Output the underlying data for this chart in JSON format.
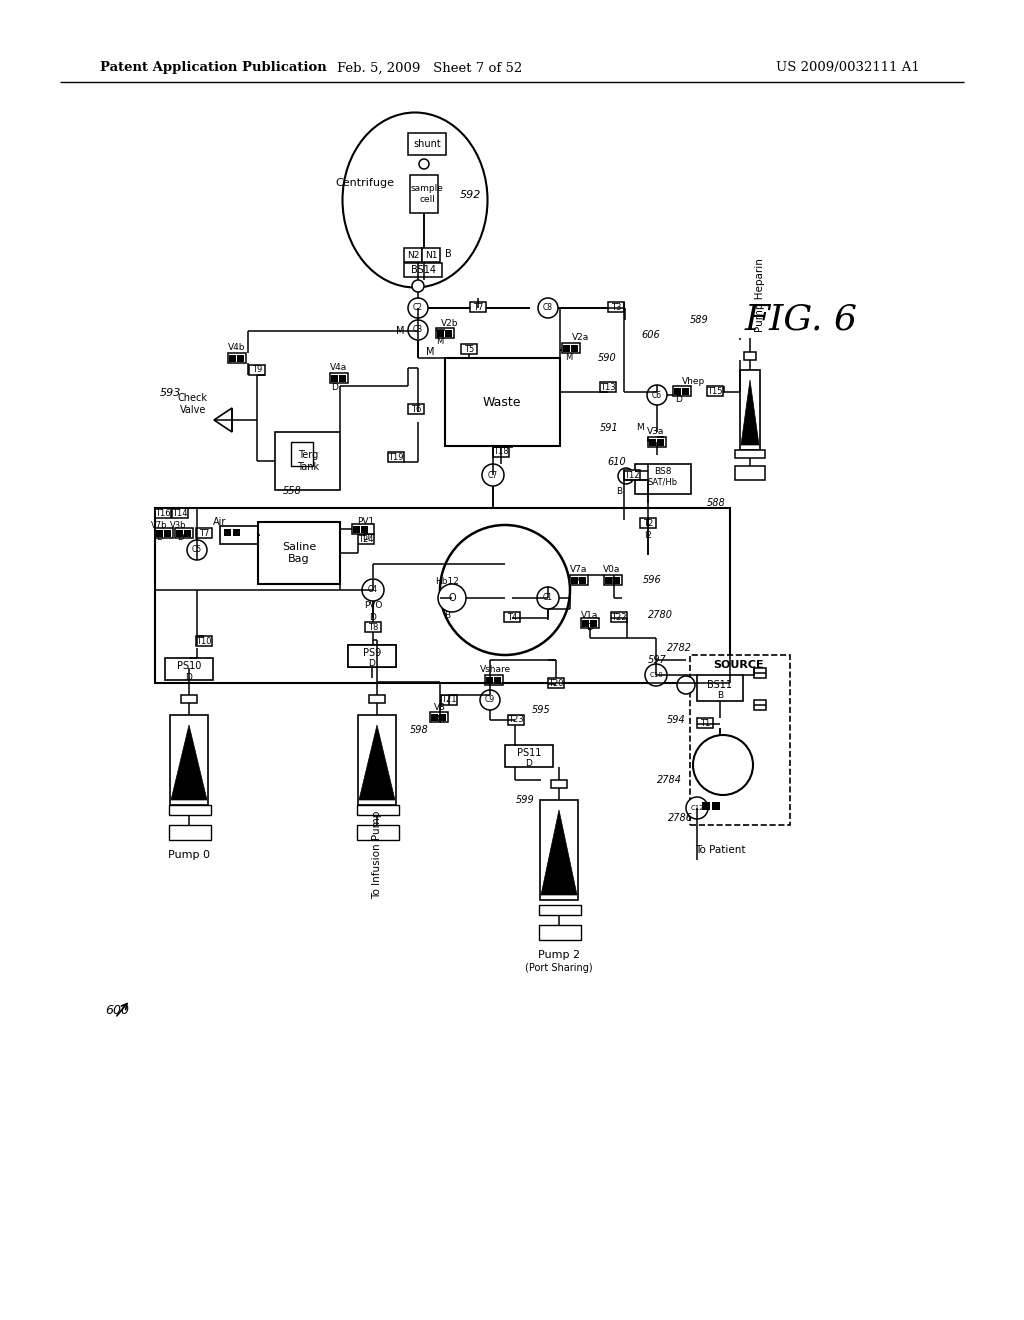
{
  "header_left": "Patent Application Publication",
  "header_mid": "Feb. 5, 2009   Sheet 7 of 52",
  "header_right": "US 2009/0032111 A1",
  "bg_color": "#ffffff",
  "line_color": "#000000"
}
